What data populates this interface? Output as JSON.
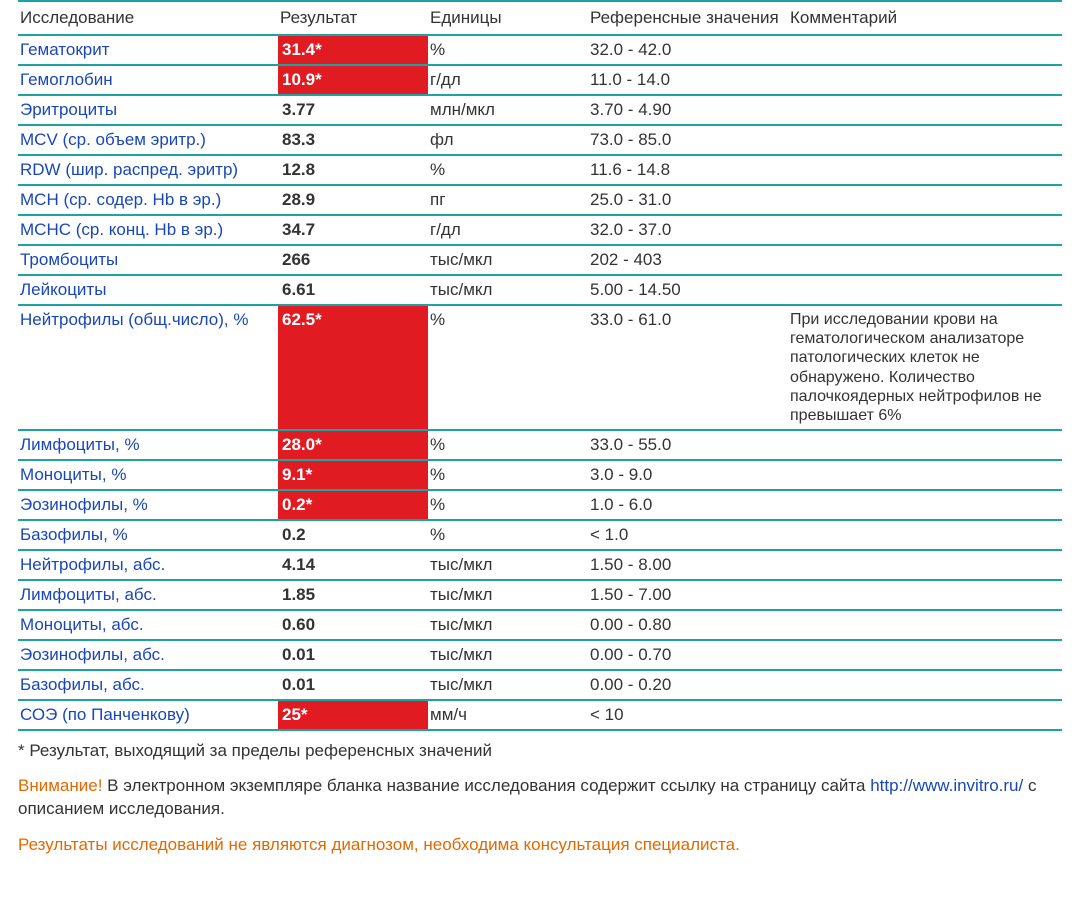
{
  "columns": {
    "name": "Исследование",
    "result": "Результат",
    "units": "Единицы",
    "ref": "Референсные значения",
    "comment": "Комментарий"
  },
  "rows": [
    {
      "name": "Гематокрит",
      "result": "31.4*",
      "flag": true,
      "units": "%",
      "ref": "32.0 - 42.0",
      "comment": ""
    },
    {
      "name": "Гемоглобин",
      "result": "10.9*",
      "flag": true,
      "units": "г/дл",
      "ref": "11.0 - 14.0",
      "comment": ""
    },
    {
      "name": "Эритроциты",
      "result": "3.77",
      "flag": false,
      "units": "млн/мкл",
      "ref": "3.70 - 4.90",
      "comment": ""
    },
    {
      "name": "MCV (ср. объем эритр.)",
      "result": "83.3",
      "flag": false,
      "units": "фл",
      "ref": "73.0 - 85.0",
      "comment": ""
    },
    {
      "name": "RDW (шир. распред. эритр)",
      "result": "12.8",
      "flag": false,
      "units": "%",
      "ref": "11.6 - 14.8",
      "comment": ""
    },
    {
      "name": "MCH (ср. содер. Hb в эр.)",
      "result": "28.9",
      "flag": false,
      "units": "пг",
      "ref": "25.0 - 31.0",
      "comment": ""
    },
    {
      "name": "MCHC (ср. конц. Hb в эр.)",
      "result": "34.7",
      "flag": false,
      "units": "г/дл",
      "ref": "32.0 - 37.0",
      "comment": ""
    },
    {
      "name": "Тромбоциты",
      "result": "266",
      "flag": false,
      "units": "тыс/мкл",
      "ref": "202 - 403",
      "comment": ""
    },
    {
      "name": "Лейкоциты",
      "result": "6.61",
      "flag": false,
      "units": "тыс/мкл",
      "ref": "5.00 - 14.50",
      "comment": ""
    },
    {
      "name": "Нейтрофилы (общ.число), %",
      "result": "62.5*",
      "flag": true,
      "units": "%",
      "ref": "33.0 - 61.0",
      "comment": "При исследовании крови на гематологическом анализаторе патологических клеток не обнаружено. Количество палочкоядерных нейтрофилов не превышает 6%"
    },
    {
      "name": "Лимфоциты, %",
      "result": "28.0*",
      "flag": true,
      "units": "%",
      "ref": "33.0 - 55.0",
      "comment": ""
    },
    {
      "name": "Моноциты, %",
      "result": "9.1*",
      "flag": true,
      "units": "%",
      "ref": "3.0 - 9.0",
      "comment": ""
    },
    {
      "name": "Эозинофилы, %",
      "result": "0.2*",
      "flag": true,
      "units": "%",
      "ref": "1.0 - 6.0",
      "comment": ""
    },
    {
      "name": "Базофилы, %",
      "result": "0.2",
      "flag": false,
      "units": "%",
      "ref": "< 1.0",
      "comment": ""
    },
    {
      "name": "Нейтрофилы, абс.",
      "result": "4.14",
      "flag": false,
      "units": "тыс/мкл",
      "ref": "1.50 - 8.00",
      "comment": ""
    },
    {
      "name": "Лимфоциты, абс.",
      "result": "1.85",
      "flag": false,
      "units": "тыс/мкл",
      "ref": "1.50 - 7.00",
      "comment": ""
    },
    {
      "name": "Моноциты, абс.",
      "result": "0.60",
      "flag": false,
      "units": "тыс/мкл",
      "ref": "0.00 - 0.80",
      "comment": ""
    },
    {
      "name": "Эозинофилы, абс.",
      "result": "0.01",
      "flag": false,
      "units": "тыс/мкл",
      "ref": "0.00 - 0.70",
      "comment": ""
    },
    {
      "name": "Базофилы, абс.",
      "result": "0.01",
      "flag": false,
      "units": "тыс/мкл",
      "ref": "0.00 - 0.20",
      "comment": ""
    },
    {
      "name": "СОЭ (по Панченкову)",
      "result": "25*",
      "flag": true,
      "units": "мм/ч",
      "ref": "< 10",
      "comment": ""
    }
  ],
  "footnote": "* Результат, выходящий за пределы референсных значений",
  "warning1_label": "Внимание!",
  "warning1_text_a": " В электронном экземпляре бланка название исследования содержит ссылку на страницу сайта ",
  "warning1_link": "http://www.invitro.ru/",
  "warning1_text_b": " с описанием исследования.",
  "warning2": "Результаты исследований не являются диагнозом, необходима консультация специалиста.",
  "colors": {
    "border": "#1da3a3",
    "link": "#1947b8",
    "flag_bg": "#e11b22",
    "flag_fg": "#ffffff",
    "warn": "#e06a00",
    "text": "#333333"
  }
}
